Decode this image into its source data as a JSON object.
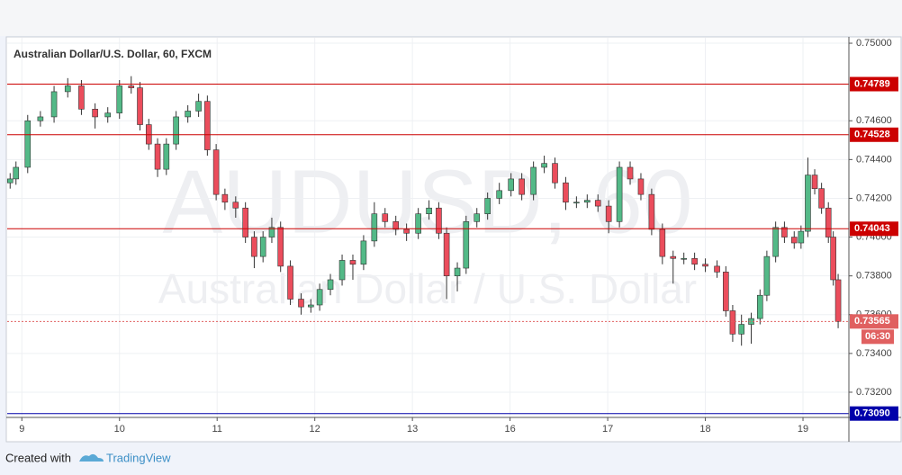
{
  "chart_data": {
    "type": "candlestick",
    "title": "Australian Dollar/U.S. Dollar, 60, FXCM",
    "watermark": [
      "AUDUSD, 60",
      "Australian Dollar / U.S. Dollar"
    ],
    "x": [
      -0.12,
      -0.06,
      0.06,
      0.19,
      0.33,
      0.47,
      0.61,
      0.75,
      0.88,
      1.0,
      1.12,
      1.21,
      1.3,
      1.39,
      1.48,
      1.58,
      1.7,
      1.81,
      1.9,
      1.99,
      2.08,
      2.19,
      2.29,
      2.38,
      2.47,
      2.56,
      2.65,
      2.75,
      2.86,
      2.96,
      3.05,
      3.16,
      3.28,
      3.39,
      3.5,
      3.61,
      3.72,
      3.83,
      3.94,
      4.06,
      4.17,
      4.27,
      4.35,
      4.46,
      4.55,
      4.66,
      4.77,
      4.89,
      5.01,
      5.12,
      5.24,
      5.35,
      5.46,
      5.57,
      5.68,
      5.79,
      5.9,
      6.01,
      6.12,
      6.23,
      6.34,
      6.45,
      6.56,
      6.67,
      6.78,
      6.89,
      7.0,
      7.12,
      7.21,
      7.28,
      7.37,
      7.47,
      7.56,
      7.63,
      7.72,
      7.81,
      7.91,
      7.98,
      8.05,
      8.12,
      8.19,
      8.26,
      8.31,
      8.36
    ],
    "open": [
      0.7428,
      0.743,
      0.7436,
      0.746,
      0.7462,
      0.7475,
      0.7478,
      0.7466,
      0.7462,
      0.7464,
      0.7478,
      0.7477,
      0.7458,
      0.7448,
      0.7435,
      0.7448,
      0.7462,
      0.7465,
      0.747,
      0.7445,
      0.7422,
      0.7418,
      0.7415,
      0.74,
      0.739,
      0.74,
      0.7405,
      0.7385,
      0.7368,
      0.7364,
      0.7365,
      0.7373,
      0.7378,
      0.7388,
      0.7386,
      0.7398,
      0.7412,
      0.7408,
      0.7404,
      0.7402,
      0.7412,
      0.7415,
      0.7402,
      0.738,
      0.7384,
      0.7408,
      0.7412,
      0.742,
      0.7424,
      0.743,
      0.7422,
      0.7436,
      0.7438,
      0.7428,
      0.7418,
      0.7418,
      0.7419,
      0.7416,
      0.7408,
      0.7436,
      0.743,
      0.7422,
      0.7404,
      0.739,
      0.7389,
      0.7389,
      0.7386,
      0.7385,
      0.7382,
      0.7362,
      0.735,
      0.7355,
      0.7358,
      0.737,
      0.739,
      0.7405,
      0.74,
      0.7397,
      0.7403,
      0.7432,
      0.7425,
      0.7415,
      0.74,
      0.7378
    ],
    "high": [
      0.7433,
      0.7439,
      0.7463,
      0.7465,
      0.7478,
      0.7482,
      0.7481,
      0.7469,
      0.7467,
      0.7481,
      0.7483,
      0.748,
      0.7461,
      0.7451,
      0.7451,
      0.7465,
      0.7468,
      0.7474,
      0.7473,
      0.7448,
      0.7425,
      0.7421,
      0.7418,
      0.7403,
      0.7403,
      0.741,
      0.7408,
      0.7388,
      0.7371,
      0.7368,
      0.7376,
      0.7381,
      0.7391,
      0.7391,
      0.7401,
      0.7418,
      0.7415,
      0.7411,
      0.7407,
      0.7415,
      0.7419,
      0.7418,
      0.7405,
      0.7387,
      0.7411,
      0.7415,
      0.7423,
      0.7428,
      0.7433,
      0.7433,
      0.7439,
      0.7442,
      0.7441,
      0.7431,
      0.7421,
      0.7422,
      0.7422,
      0.7419,
      0.7439,
      0.7439,
      0.7433,
      0.7425,
      0.7407,
      0.7393,
      0.7392,
      0.7392,
      0.7389,
      0.7388,
      0.7385,
      0.7365,
      0.736,
      0.7361,
      0.7373,
      0.7393,
      0.7408,
      0.7408,
      0.7403,
      0.7406,
      0.7441,
      0.7435,
      0.7428,
      0.7418,
      0.7403,
      0.7381
    ],
    "low": [
      0.7425,
      0.7427,
      0.7433,
      0.7457,
      0.7459,
      0.7472,
      0.7463,
      0.7456,
      0.7459,
      0.7461,
      0.7474,
      0.7455,
      0.7445,
      0.7431,
      0.7432,
      0.7445,
      0.7459,
      0.7462,
      0.7442,
      0.7419,
      0.7414,
      0.741,
      0.7397,
      0.7384,
      0.7387,
      0.7397,
      0.7382,
      0.7365,
      0.736,
      0.7361,
      0.7362,
      0.737,
      0.7375,
      0.7378,
      0.7383,
      0.7395,
      0.7405,
      0.7401,
      0.7398,
      0.7399,
      0.7409,
      0.7399,
      0.7368,
      0.7372,
      0.7381,
      0.7405,
      0.7409,
      0.7417,
      0.7421,
      0.7419,
      0.7419,
      0.7433,
      0.7425,
      0.7414,
      0.7415,
      0.7415,
      0.7413,
      0.7402,
      0.7405,
      0.7427,
      0.7419,
      0.7401,
      0.7386,
      0.7376,
      0.7386,
      0.7383,
      0.7382,
      0.7379,
      0.7359,
      0.7346,
      0.7344,
      0.7345,
      0.7355,
      0.7367,
      0.7387,
      0.7397,
      0.7394,
      0.7394,
      0.74,
      0.7422,
      0.7412,
      0.7397,
      0.7375,
      0.7353
    ],
    "close": [
      0.743,
      0.7436,
      0.746,
      0.7462,
      0.7475,
      0.7478,
      0.7466,
      0.7462,
      0.7464,
      0.7478,
      0.7477,
      0.7458,
      0.7448,
      0.7435,
      0.7448,
      0.7462,
      0.7465,
      0.747,
      0.7445,
      0.7422,
      0.7418,
      0.7415,
      0.74,
      0.739,
      0.74,
      0.7405,
      0.7385,
      0.7368,
      0.7364,
      0.7365,
      0.7373,
      0.7378,
      0.7388,
      0.7386,
      0.7398,
      0.7412,
      0.7408,
      0.7404,
      0.7402,
      0.7412,
      0.7415,
      0.7402,
      0.738,
      0.7384,
      0.7408,
      0.7412,
      0.742,
      0.7424,
      0.743,
      0.7422,
      0.7436,
      0.7438,
      0.7428,
      0.7418,
      0.7418,
      0.7419,
      0.7416,
      0.7408,
      0.7436,
      0.743,
      0.7422,
      0.7404,
      0.739,
      0.7389,
      0.7389,
      0.7386,
      0.7385,
      0.7382,
      0.7362,
      0.735,
      0.7355,
      0.7358,
      0.737,
      0.739,
      0.7405,
      0.74,
      0.7397,
      0.7403,
      0.7432,
      0.7425,
      0.7415,
      0.74,
      0.7378,
      0.73565
    ],
    "up_color": "#53b987",
    "down_color": "#eb4d5c",
    "xlim": [
      -0.15,
      8.47
    ],
    "xticks": [
      {
        "value": 0,
        "label": "9"
      },
      {
        "value": 1,
        "label": "10"
      },
      {
        "value": 2,
        "label": "11"
      },
      {
        "value": 3,
        "label": "12"
      },
      {
        "value": 4,
        "label": "13"
      },
      {
        "value": 5,
        "label": "16"
      },
      {
        "value": 6,
        "label": "17"
      },
      {
        "value": 7,
        "label": "18"
      },
      {
        "value": 8,
        "label": "19"
      }
    ],
    "ylim": [
      0.7307,
      0.75028
    ],
    "yticks": [
      {
        "value": 0.75,
        "label": "0.75000"
      },
      {
        "value": 0.746,
        "label": "0.74600"
      },
      {
        "value": 0.744,
        "label": "0.74400"
      },
      {
        "value": 0.742,
        "label": "0.74200"
      },
      {
        "value": 0.74,
        "label": "0.74000"
      },
      {
        "value": 0.738,
        "label": "0.73800"
      },
      {
        "value": 0.736,
        "label": "0.73600"
      },
      {
        "value": 0.734,
        "label": "0.73400"
      },
      {
        "value": 0.732,
        "label": "0.73200"
      }
    ],
    "grid": true,
    "price_lines": [
      {
        "value": 0.74789,
        "label": "0.74789",
        "color": "#cc0000",
        "style": "solid"
      },
      {
        "value": 0.74528,
        "label": "0.74528",
        "color": "#cc0000",
        "style": "solid"
      },
      {
        "value": 0.74043,
        "label": "0.74043",
        "color": "#cc0000",
        "style": "solid"
      },
      {
        "value": 0.7309,
        "label": "0.73090",
        "color": "#0000aa",
        "style": "solid"
      },
      {
        "value": 0.73565,
        "label": "0.73565",
        "color": "#e06060",
        "style": "dotted"
      }
    ],
    "countdown": "06:30"
  },
  "footer": {
    "text": "Created with",
    "brand": "TradingView"
  }
}
